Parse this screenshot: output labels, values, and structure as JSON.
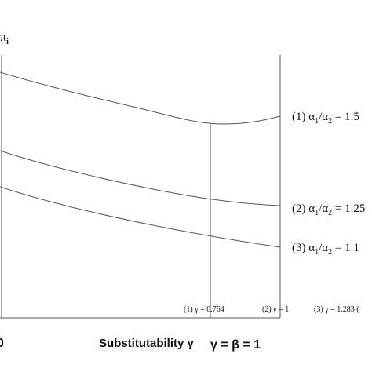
{
  "y_label": [
    "π",
    "i"
  ],
  "curves": [
    {
      "label": [
        "(1) α",
        "1",
        "/α",
        "2",
        " = 1.5"
      ]
    },
    {
      "label": [
        "(2) α",
        "1",
        "/α",
        "2",
        " = 1.25"
      ]
    },
    {
      "label": [
        "(3) α",
        "1",
        "/α",
        "2",
        " = 1.1"
      ]
    }
  ],
  "x_marks": [
    "(1) γ = 0.764",
    "(2) γ = 1",
    "(3) γ = 1.283 ("
  ],
  "x_label": "Substitutability γ",
  "x_note": "γ = β = 1",
  "origin": "0"
}
